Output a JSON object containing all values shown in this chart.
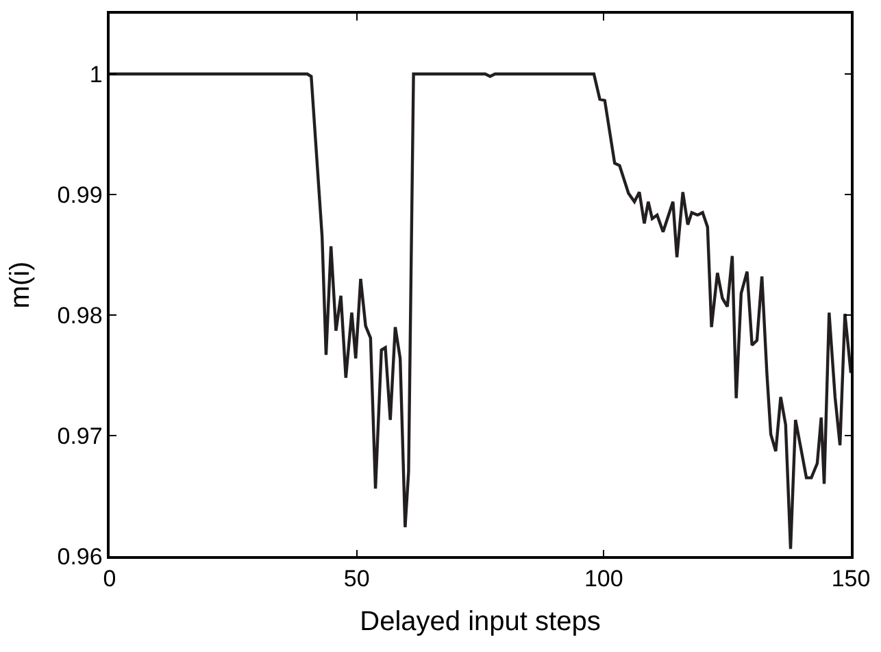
{
  "chart_data": {
    "type": "line",
    "xlabel": "Delayed input steps",
    "ylabel": "m(i)",
    "x": [
      0,
      40,
      40.8,
      43,
      43.8,
      44.8,
      45.8,
      46.8,
      47.8,
      49,
      49.8,
      50.8,
      51.8,
      52.8,
      53.8,
      55,
      55.8,
      56.8,
      57.8,
      58.8,
      59.8,
      60.5,
      61.5,
      76,
      77,
      78,
      98,
      99.2,
      100.2,
      102.2,
      103.2,
      105,
      106.2,
      107.2,
      108.2,
      109,
      109.8,
      110.8,
      112,
      114,
      114.8,
      116,
      117,
      117.8,
      119,
      120,
      121,
      121.8,
      123,
      124,
      125,
      126,
      126.8,
      127.8,
      129,
      130,
      131,
      132,
      133,
      133.8,
      134.8,
      135.8,
      136.8,
      137.8,
      138.8,
      140,
      141,
      142,
      143.2,
      144,
      144.6,
      145.6,
      146.8,
      147.8,
      148.8,
      150
    ],
    "series": [
      {
        "color": "#231f20",
        "values": [
          1.0,
          1.0,
          0.9998,
          0.9865,
          0.9767,
          0.9857,
          0.9787,
          0.9816,
          0.9748,
          0.9802,
          0.9764,
          0.983,
          0.9791,
          0.9781,
          0.9656,
          0.9771,
          0.9773,
          0.9713,
          0.979,
          0.9764,
          0.9624,
          0.967,
          1.0,
          1.0,
          0.9998,
          1.0,
          1.0,
          0.9979,
          0.9978,
          0.9926,
          0.9924,
          0.9901,
          0.9894,
          0.9902,
          0.9876,
          0.9894,
          0.988,
          0.9883,
          0.9869,
          0.9894,
          0.9848,
          0.9902,
          0.9875,
          0.9885,
          0.9883,
          0.9885,
          0.9873,
          0.979,
          0.9835,
          0.9814,
          0.9807,
          0.9849,
          0.9731,
          0.9818,
          0.9836,
          0.9775,
          0.9779,
          0.9832,
          0.9752,
          0.9701,
          0.9687,
          0.9732,
          0.9709,
          0.9606,
          0.9713,
          0.9687,
          0.9665,
          0.9665,
          0.9677,
          0.9715,
          0.966,
          0.9802,
          0.9732,
          0.9692,
          0.9801,
          0.9752
        ]
      }
    ],
    "xlim": [
      0,
      150
    ],
    "xticks": [
      0,
      50,
      100,
      150
    ],
    "ylim": [
      0.96,
      1.005
    ],
    "yticks": [
      0.96,
      0.97,
      0.98,
      0.99,
      1
    ],
    "legend": false,
    "marker": "none",
    "line_style": "solid"
  }
}
